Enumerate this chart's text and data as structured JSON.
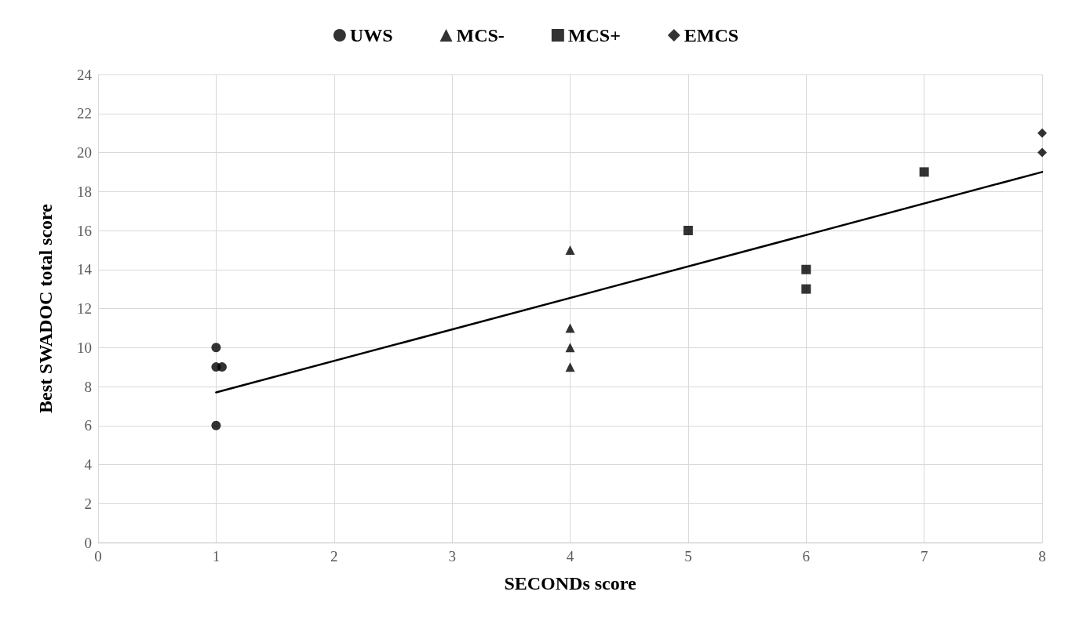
{
  "chart_data": {
    "type": "scatter",
    "xlabel": "SECONDs score",
    "ylabel": "Best SWADOC total score",
    "xlim": [
      0,
      8
    ],
    "xticks": [
      0,
      1,
      2,
      3,
      4,
      5,
      6,
      7,
      8
    ],
    "ylim": [
      0,
      24
    ],
    "yticks": [
      0,
      2,
      4,
      6,
      8,
      10,
      12,
      14,
      16,
      18,
      20,
      22,
      24
    ],
    "grid": true,
    "legend": "top",
    "series": [
      {
        "name": "UWS",
        "color": "#000000",
        "marker": "circle",
        "x": [
          1,
          1,
          1.05,
          1
        ],
        "values": [
          10,
          9,
          9,
          6
        ]
      },
      {
        "name": "MCS-",
        "color": "#000000",
        "marker": "triangle",
        "x": [
          4,
          4,
          4,
          4
        ],
        "values": [
          15,
          11,
          10,
          9
        ]
      },
      {
        "name": "MCS+",
        "color": "#000000",
        "marker": "square",
        "x": [
          5,
          6,
          6,
          7
        ],
        "values": [
          16,
          14,
          13,
          19
        ]
      },
      {
        "name": "EMCS",
        "color": "#000000",
        "marker": "diamond",
        "x": [
          8,
          8
        ],
        "values": [
          21,
          20
        ]
      },
      {
        "type": "line",
        "color": "#000000",
        "marker": "none",
        "line_style": "solid",
        "x": [
          1,
          8
        ],
        "values": [
          7.7,
          19.0
        ]
      }
    ]
  }
}
